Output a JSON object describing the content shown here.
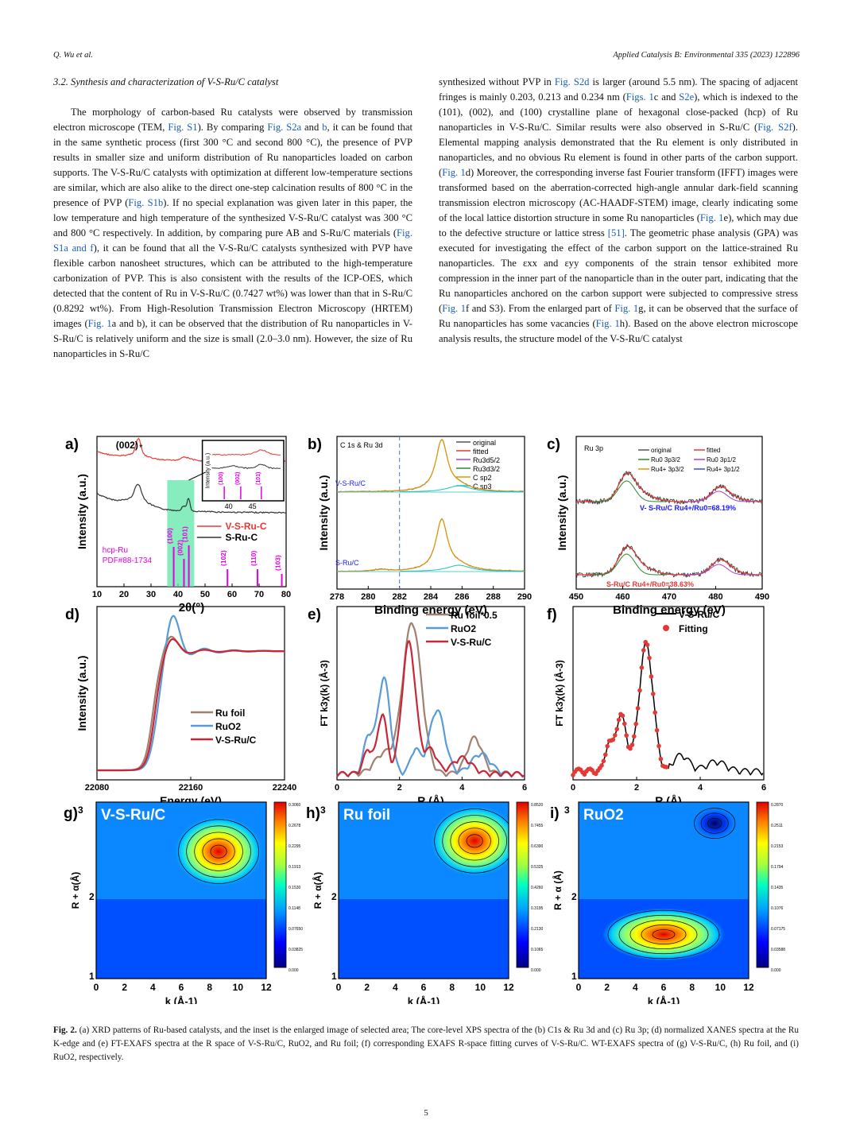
{
  "header": {
    "left": "Q. Wu et al.",
    "right": "Applied Catalysis B: Environmental 335 (2023) 122896"
  },
  "section_title": "3.2.  Synthesis and characterization of V-S-Ru/C catalyst",
  "left_column": [
    {
      "t": "The morphology of carbon-based Ru catalysts were observed by transmission electron microscope (TEM, "
    },
    {
      "l": "Fig. S1"
    },
    {
      "t": "). By comparing "
    },
    {
      "l": "Fig. S2a"
    },
    {
      "t": " and "
    },
    {
      "l": "b"
    },
    {
      "t": ", it can be found that in the same synthetic process (first 300 °C and second 800 °C), the presence of PVP results in smaller size and uniform distribution of Ru nanoparticles loaded on carbon supports. The V-S-Ru/C catalysts with optimization at different low-temperature sections are similar, which are also alike to the direct one-step calcination results of 800 °C in the presence of PVP ("
    },
    {
      "l": "Fig. S1b"
    },
    {
      "t": "). If no special explanation was given later in this paper, the low temperature and high temperature of the synthesized V-S-Ru/C catalyst was 300 °C and 800 °C respectively. In addition, by comparing pure AB and S-Ru/C materials ("
    },
    {
      "l": "Fig. S1a and f"
    },
    {
      "t": "), it can be found that all the V-S-Ru/C catalysts synthesized with PVP have flexible carbon nanosheet structures, which can be attributed to the high-temperature carbonization of PVP. This is also consistent with the results of the ICP-OES, which detected that the content of Ru in V-S-Ru/C (0.7427 wt%) was lower than that in S-Ru/C (0.8292 wt%). From High-Resolution Transmission Electron Microscopy (HRTEM) images ("
    },
    {
      "l": "Fig. 1"
    },
    {
      "t": "a and b), it can be observed that the distribution of Ru nanoparticles in V-S-Ru/C is relatively uniform and the size is small (2.0–3.0 nm). However, the size of Ru nanoparticles in S-Ru/C"
    }
  ],
  "right_column": [
    {
      "t": "synthesized without PVP in "
    },
    {
      "l": "Fig. S2d"
    },
    {
      "t": " is larger (around 5.5 nm). The spacing of adjacent fringes is mainly 0.203, 0.213 and 0.234 nm ("
    },
    {
      "l": "Figs. 1"
    },
    {
      "t": "c and "
    },
    {
      "l": "S2e"
    },
    {
      "t": "), which is indexed to the (101), (002), and (100) crystalline plane of hexagonal close-packed (hcp) of Ru nanoparticles in V-S-Ru/C. Similar results were also observed in S-Ru/C ("
    },
    {
      "l": "Fig. S2f"
    },
    {
      "t": "). Elemental mapping analysis demonstrated that the Ru element is only distributed in nanoparticles, and no obvious Ru element is found in other parts of the carbon support. ("
    },
    {
      "l": "Fig. 1"
    },
    {
      "t": "d) Moreover, the corresponding inverse fast Fourier transform (IFFT) images were transformed based on the aberration-corrected high-angle annular dark-field scanning transmission electron microscopy (AC-HAADF-STEM) image, clearly indicating some of the local lattice distortion structure in some Ru nanoparticles ("
    },
    {
      "l": "Fig. 1"
    },
    {
      "t": "e), which may due to the defective structure or lattice stress "
    },
    {
      "l": "[51]"
    },
    {
      "t": ". The geometric phase analysis (GPA) was executed for investigating the effect of the carbon support on the lattice-strained Ru nanoparticles. The εxx and εyy components of the strain tensor exhibited more compression in the inner part of the nanoparticle than in the outer part, indicating that the Ru nanoparticles anchored on the carbon support were subjected to compressive stress ("
    },
    {
      "l": "Fig. 1"
    },
    {
      "t": "f and S3). From the enlarged part of "
    },
    {
      "l": "Fig. 1"
    },
    {
      "t": "g, it can be observed that the surface of Ru nanoparticles has some vacancies ("
    },
    {
      "l": "Fig. 1"
    },
    {
      "t": "h). Based on the above electron microscope analysis results, the structure model of the V-S-Ru/C catalyst"
    }
  ],
  "caption": "Fig. 2.  (a) XRD patterns of Ru-based catalysts, and the inset is the enlarged image of selected area; The core-level XPS spectra of the (b) C1s & Ru 3d and (c) Ru 3p; (d) normalized XANES spectra at the Ru K-edge and (e) FT-EXAFS spectra at the R space of V-S-Ru/C, RuO2, and Ru foil; (f) corresponding EXAFS R-space fitting curves of V-S-Ru/C. WT-EXAFS spectra of (g) V-S-Ru/C, (h) Ru foil, and (i) RuO2, respectively.",
  "page_number": "5",
  "figure": {
    "a": {
      "label": "a)",
      "ylabel": "Intensity (a.u.)",
      "xlabel": "2θ(°)",
      "xticks": [
        "10",
        "20",
        "30",
        "40",
        "50",
        "60",
        "70",
        "80"
      ],
      "peak_label": "(002)",
      "series": [
        "V-S-Ru-C",
        "S-Ru-C"
      ],
      "ref_label": "hcp-Ru",
      "ref_card": "PDF#88-1734",
      "ref_peaks": [
        "(100)",
        "(002)",
        "(101)",
        "(102)",
        "(110)",
        "(103)"
      ],
      "inset_ylabel": "Intensity (a.u.)",
      "inset_peaks": [
        "(100)",
        "(002)",
        "(101)"
      ],
      "inset_xticks": [
        "40",
        "45"
      ]
    },
    "b": {
      "label": "b)",
      "title": "C 1s & Ru 3d",
      "ylabel": "Intensity (a.u.)",
      "xlabel": "Binding energy (eV)",
      "xticks": [
        "278",
        "280",
        "282",
        "284",
        "286",
        "288",
        "290"
      ],
      "legend": [
        "original",
        "fitted",
        "Ru3d5/2",
        "Ru3d3/2",
        "C sp2",
        "C sp3"
      ],
      "samples": [
        "V-S-Ru/C",
        "S-Ru/C"
      ]
    },
    "c": {
      "label": "c)",
      "title": "Ru 3p",
      "ylabel": "Intensity (a.u.)",
      "xlabel": "Binding energy (eV)",
      "xticks": [
        "450",
        "460",
        "470",
        "480",
        "490"
      ],
      "legend": [
        "original",
        "fitted",
        "Ru0 3p3/2",
        "Ru0 3p1/2",
        "Ru4+ 3p3/2",
        "Ru4+ 3p1/2"
      ],
      "ratio1": "V- S-Ru/C Ru4+/Ru0=68.19%",
      "ratio2": "S-Ru/C Ru4+/Ru0=38.63%"
    },
    "d": {
      "label": "d)",
      "ylabel": "Intensity (a.u.)",
      "xlabel": "Energy (eV)",
      "xticks": [
        "22080",
        "22160",
        "22240"
      ],
      "legend": [
        "Ru foil",
        "RuO2",
        "V-S-Ru/C"
      ]
    },
    "e": {
      "label": "e)",
      "ylabel": "FT k3χ(k) (Å-3)",
      "xlabel": "R (Å)",
      "xticks": [
        "0",
        "2",
        "4",
        "6"
      ],
      "legend": [
        "Ru foil*0.5",
        "RuO2",
        "V-S-Ru/C"
      ]
    },
    "f": {
      "label": "f)",
      "ylabel": "FT k3χ(k) (Å-3)",
      "xlabel": "R (Å)",
      "xticks": [
        "0",
        "2",
        "4",
        "6"
      ],
      "legend": [
        "V-S-Ru/C",
        "Fitting"
      ]
    },
    "g": {
      "label": "g)",
      "title": "V-S-Ru/C",
      "ylabel": "R + α(Å)",
      "xlabel": "k (Å-1)",
      "xticks": [
        "0",
        "2",
        "4",
        "6",
        "8",
        "10",
        "12"
      ],
      "yticks": [
        "1",
        "2",
        "3"
      ],
      "cbar": [
        "0.3060",
        "0.2678",
        "0.2295",
        "0.1913",
        "0.1530",
        "0.1148",
        "0.07650",
        "0.03825",
        "0.000"
      ]
    },
    "h": {
      "label": "h)",
      "title": "Ru foil",
      "ylabel": "R + α(Å)",
      "xlabel": "k (Å-1)",
      "xticks": [
        "0",
        "2",
        "4",
        "6",
        "8",
        "10",
        "12"
      ],
      "yticks": [
        "1",
        "2",
        "3"
      ],
      "cbar": [
        "0.8520",
        "0.7455",
        "0.6390",
        "0.5325",
        "0.4260",
        "0.3195",
        "0.2130",
        "0.1065",
        "0.000"
      ]
    },
    "i": {
      "label": "i)",
      "title": "RuO2",
      "ylabel": "R + α (Å)",
      "xlabel": "k (Å-1)",
      "xticks": [
        "0",
        "2",
        "4",
        "6",
        "8",
        "10",
        "12"
      ],
      "yticks": [
        "1",
        "2",
        "3"
      ],
      "cbar": [
        "0.2870",
        "0.2511",
        "0.2153",
        "0.1794",
        "0.1435",
        "0.1076",
        "0.07175",
        "0.03588",
        "0.000"
      ]
    }
  },
  "colors": {
    "link": "#1a5fb4",
    "red": "#e53935",
    "black": "#333333",
    "brown": "#a08070",
    "blue": "#5b9bd5",
    "crimson": "#c62838",
    "magenta": "#e600e6",
    "highlight": "#5fe6a8"
  }
}
